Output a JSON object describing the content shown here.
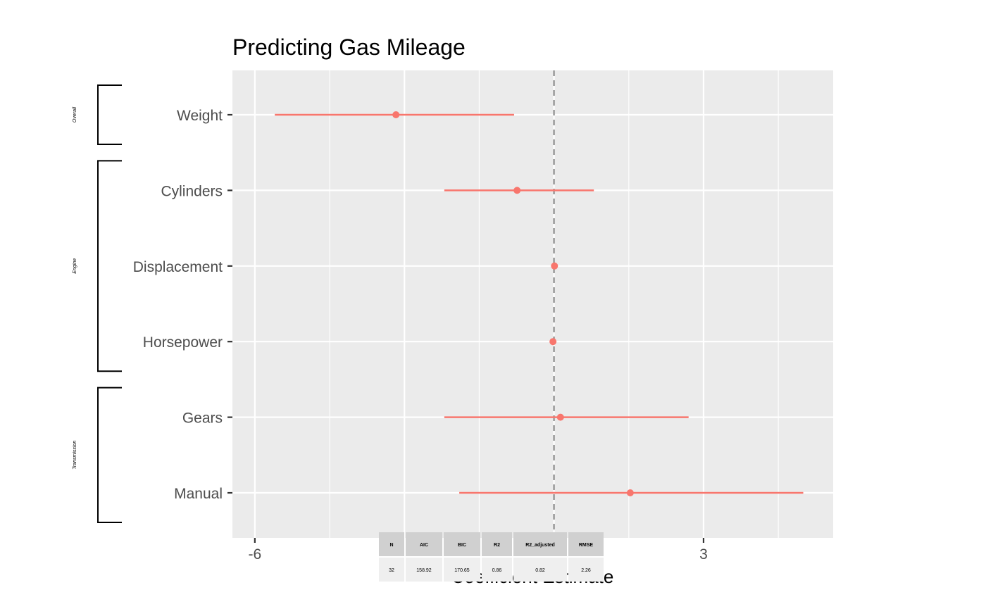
{
  "chart_data": {
    "type": "scatter",
    "subtype": "coefficient-plot",
    "title": "Predicting Gas Mileage",
    "xlabel": "Coefficient Estimate",
    "ylabel": "",
    "xticks": [
      {
        "value": -6,
        "label": "-6"
      },
      {
        "value": 3,
        "label": "3"
      }
    ],
    "xlim": [
      -6.45,
      5.6
    ],
    "reference_line": 0,
    "grid": true,
    "colors": {
      "panel_bg": "#ebebeb",
      "grid": "#ffffff",
      "point": "#f8766d",
      "reference": "#999999"
    },
    "terms": [
      {
        "label": "Weight",
        "estimate": -3.17,
        "low": -5.6,
        "high": -0.8
      },
      {
        "label": "Cylinders",
        "estimate": -0.74,
        "low": -2.2,
        "high": 0.8
      },
      {
        "label": "Displacement",
        "estimate": 0.01,
        "low": 0.0,
        "high": 0.03
      },
      {
        "label": "Horsepower",
        "estimate": -0.02,
        "low": -0.05,
        "high": 0.0
      },
      {
        "label": "Gears",
        "estimate": 0.13,
        "low": -2.2,
        "high": 2.7
      },
      {
        "label": "Manual",
        "estimate": 1.53,
        "low": -1.9,
        "high": 5.0
      }
    ],
    "groups": [
      {
        "label": "Overall",
        "first_term": 0,
        "last_term": 0
      },
      {
        "label": "Engine",
        "first_term": 1,
        "last_term": 3
      },
      {
        "label": "Transmission",
        "first_term": 4,
        "last_term": 5
      }
    ],
    "stats_table": {
      "headers": [
        "N",
        "AIC",
        "BIC",
        "R2",
        "R2_adjusted",
        "RMSE"
      ],
      "values": [
        "32",
        "158.92",
        "170.65",
        "0.86",
        "0.82",
        "2.26"
      ]
    }
  }
}
